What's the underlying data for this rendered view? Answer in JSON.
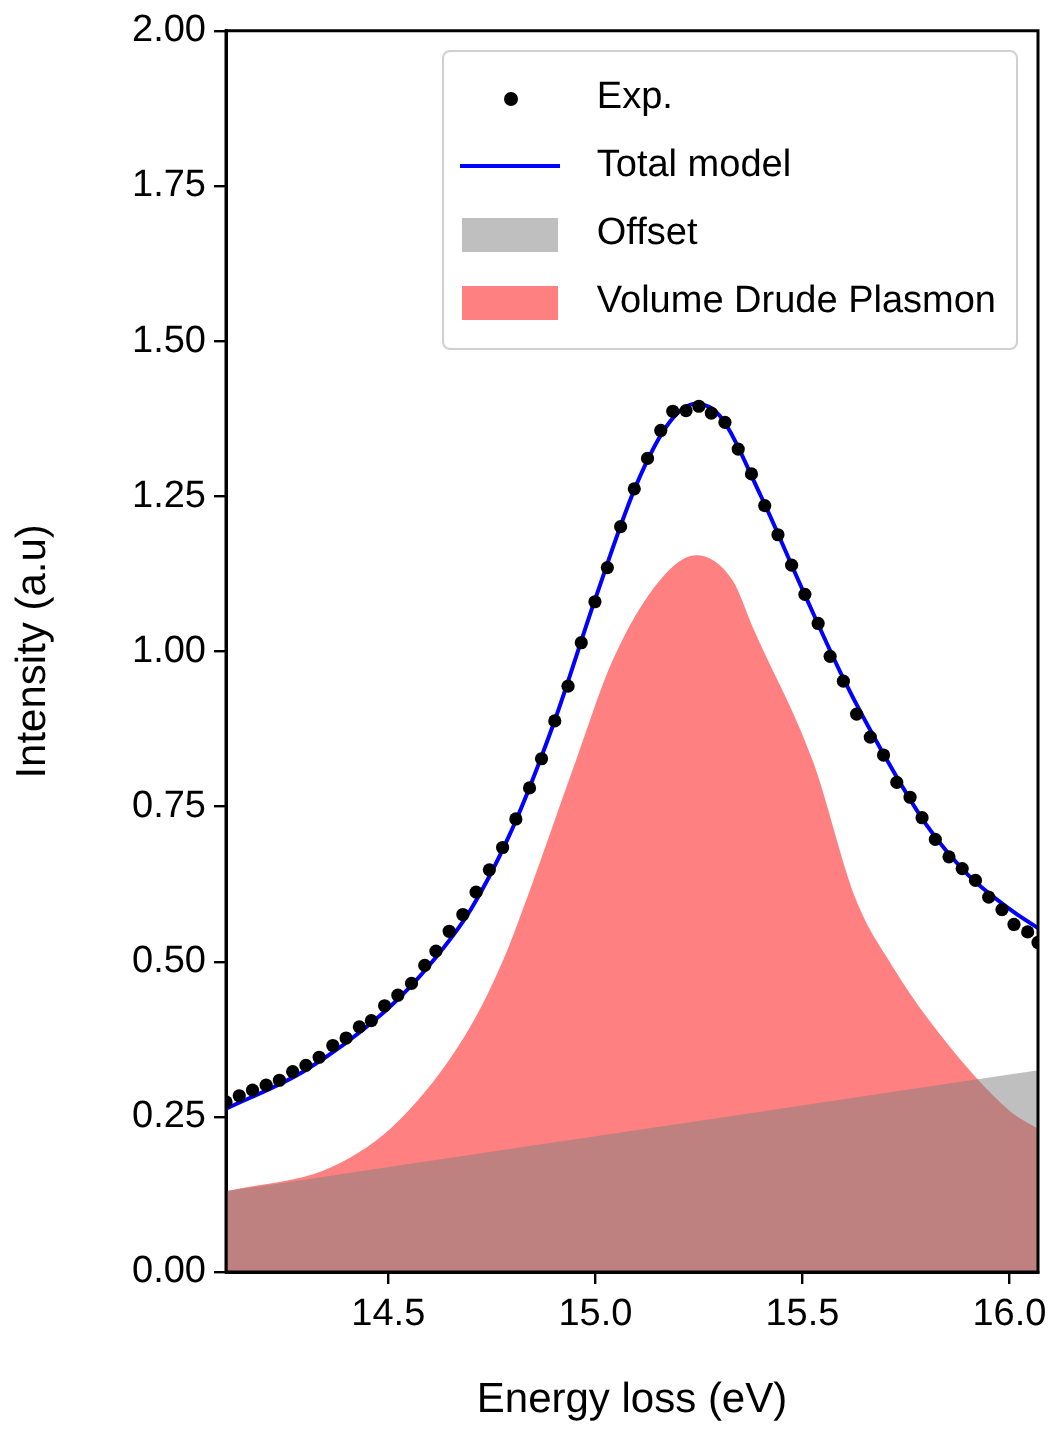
{
  "chart_data": {
    "type": "line",
    "xlabel": "Energy loss (eV)",
    "ylabel": "Intensity (a.u)",
    "xlim": [
      14.108,
      16.069
    ],
    "ylim": [
      0,
      2
    ],
    "xticks": [
      14.5,
      {
        "value": 15,
        "label": "15.0"
      },
      15.5,
      {
        "value": 16,
        "label": "16.0"
      }
    ],
    "yticks": [
      {
        "value": 0,
        "label": "0.00"
      },
      0.25,
      {
        "value": 0.5,
        "label": "0.50"
      },
      0.75,
      {
        "value": 1,
        "label": "1.00"
      },
      1.25,
      {
        "value": 1.5,
        "label": "1.50"
      },
      1.75,
      {
        "value": 2,
        "label": "2.00"
      }
    ],
    "legend": "top right",
    "series": [
      {
        "name": "Exp.",
        "type": "scatter",
        "marker": "circle",
        "color": "#000000",
        "x": [
          14.108,
          14.14,
          14.172,
          14.205,
          14.237,
          14.269,
          14.301,
          14.333,
          14.366,
          14.398,
          14.43,
          14.459,
          14.491,
          14.523,
          14.556,
          14.588,
          14.615,
          14.647,
          14.68,
          14.712,
          14.744,
          14.776,
          14.808,
          14.841,
          14.87,
          14.902,
          14.934,
          14.966,
          14.999,
          15.029,
          15.061,
          15.094,
          15.126,
          15.158,
          15.187,
          15.219,
          15.25,
          15.28,
          15.313,
          15.345,
          15.377,
          15.409,
          15.441,
          15.474,
          15.506,
          15.538,
          15.567,
          15.599,
          15.631,
          15.664,
          15.696,
          15.728,
          15.76,
          15.789,
          15.821,
          15.854,
          15.886,
          15.918,
          15.95,
          15.982,
          16.011,
          16.044,
          16.069
        ],
        "values": [
          0.274,
          0.284,
          0.293,
          0.301,
          0.309,
          0.323,
          0.333,
          0.346,
          0.365,
          0.377,
          0.395,
          0.405,
          0.429,
          0.446,
          0.465,
          0.494,
          0.517,
          0.549,
          0.576,
          0.612,
          0.648,
          0.684,
          0.73,
          0.78,
          0.827,
          0.888,
          0.944,
          1.014,
          1.08,
          1.135,
          1.201,
          1.262,
          1.311,
          1.356,
          1.387,
          1.388,
          1.395,
          1.384,
          1.369,
          1.326,
          1.286,
          1.235,
          1.188,
          1.139,
          1.092,
          1.045,
          0.992,
          0.952,
          0.899,
          0.862,
          0.833,
          0.789,
          0.765,
          0.732,
          0.697,
          0.669,
          0.65,
          0.631,
          0.604,
          0.584,
          0.56,
          0.548,
          0.531
        ]
      },
      {
        "name": "Total model",
        "type": "line",
        "color": "#0000ff",
        "x": [
          14.108,
          14.3,
          14.5,
          14.6,
          14.7,
          14.8,
          14.9,
          15.0,
          15.1,
          15.18,
          15.243,
          15.3,
          15.4,
          15.5,
          15.6,
          15.7,
          15.8,
          15.9,
          16.0,
          16.069
        ],
        "values": [
          0.263,
          0.325,
          0.425,
          0.495,
          0.585,
          0.715,
          0.885,
          1.085,
          1.27,
          1.37,
          1.399,
          1.38,
          1.25,
          1.1,
          0.955,
          0.83,
          0.72,
          0.64,
          0.585,
          0.554
        ]
      },
      {
        "name": "Offset",
        "type": "area",
        "color": "#bfbfbf",
        "x": [
          14.108,
          16.069
        ],
        "values": [
          0.13,
          0.325
        ]
      },
      {
        "name": "Volume Drude Plasmon",
        "type": "area",
        "color": "#ff8080",
        "x": [
          14.108,
          14.366,
          14.527,
          14.688,
          14.777,
          14.833,
          14.953,
          15.042,
          15.155,
          15.243,
          15.332,
          15.38,
          15.525,
          15.63,
          15.72,
          15.831,
          16.0,
          16.069
        ],
        "values": [
          0.13,
          0.17,
          0.245,
          0.384,
          0.502,
          0.599,
          0.824,
          0.986,
          1.114,
          1.155,
          1.114,
          1.039,
          0.824,
          0.599,
          0.49,
          0.384,
          0.26,
          0.231
        ]
      }
    ]
  }
}
